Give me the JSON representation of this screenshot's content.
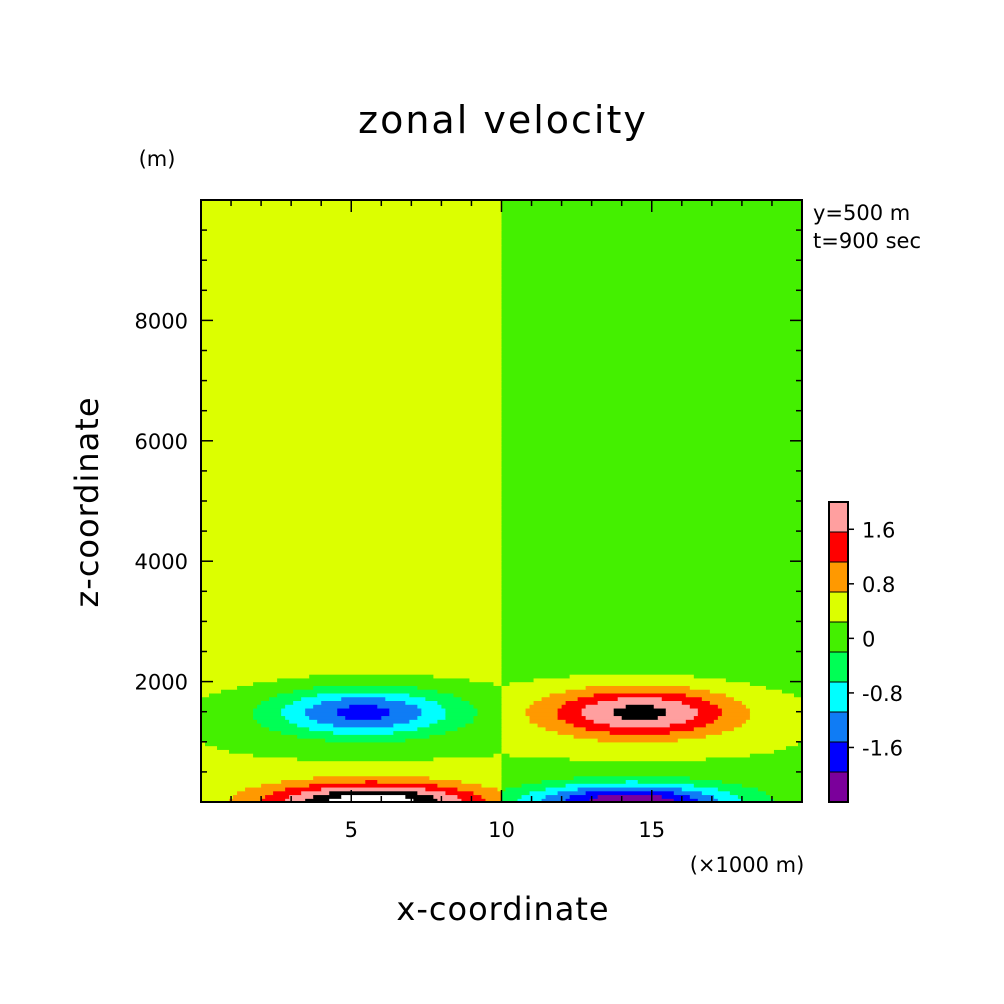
{
  "chart_data": {
    "type": "heatmap",
    "title": "zonal velocity",
    "xlabel": "x-coordinate",
    "ylabel": "z-coordinate",
    "x_unit": "(×1000 m)",
    "y_unit": "(m)",
    "xlim": [
      0,
      20
    ],
    "ylim": [
      0,
      10000
    ],
    "x_ticks": [
      "5",
      "10",
      "15"
    ],
    "x_tick_values": [
      5,
      10,
      15
    ],
    "y_ticks": [
      "2000",
      "4000",
      "6000",
      "8000"
    ],
    "y_tick_values": [
      2000,
      4000,
      6000,
      8000
    ],
    "annotations": [
      "y=500 m",
      "t=900 sec"
    ],
    "grid": false,
    "colorbar": {
      "levels": [
        -2.4,
        -2.0,
        -1.6,
        -1.2,
        -0.8,
        -0.4,
        0,
        0.4,
        0.8,
        1.2,
        1.6,
        2.0
      ],
      "colors": [
        "#7b009b",
        "#0000ff",
        "#0f7cf5",
        "#00ffff",
        "#00ff55",
        "#44f000",
        "#dcff00",
        "#ff9900",
        "#ff0000",
        "#ff9f9f"
      ],
      "tick_labels": [
        "1.6",
        "0.8",
        "0",
        "-0.8",
        "-1.6"
      ],
      "tick_values": [
        1.6,
        0.8,
        0,
        -0.8,
        -1.6
      ]
    },
    "features": [
      {
        "name": "upper negative cell",
        "x_center": 6,
        "z_center": 1500,
        "min": -1.8
      },
      {
        "name": "upper positive cell",
        "x_center": 14.5,
        "z_center": 1500,
        "max": 1.8
      },
      {
        "name": "surface positive cell",
        "x_center": 5.5,
        "z_center": 0,
        "max": 2.1
      },
      {
        "name": "surface negative cell",
        "x_center": 14.5,
        "z_center": 0,
        "min": -2.1
      }
    ]
  }
}
